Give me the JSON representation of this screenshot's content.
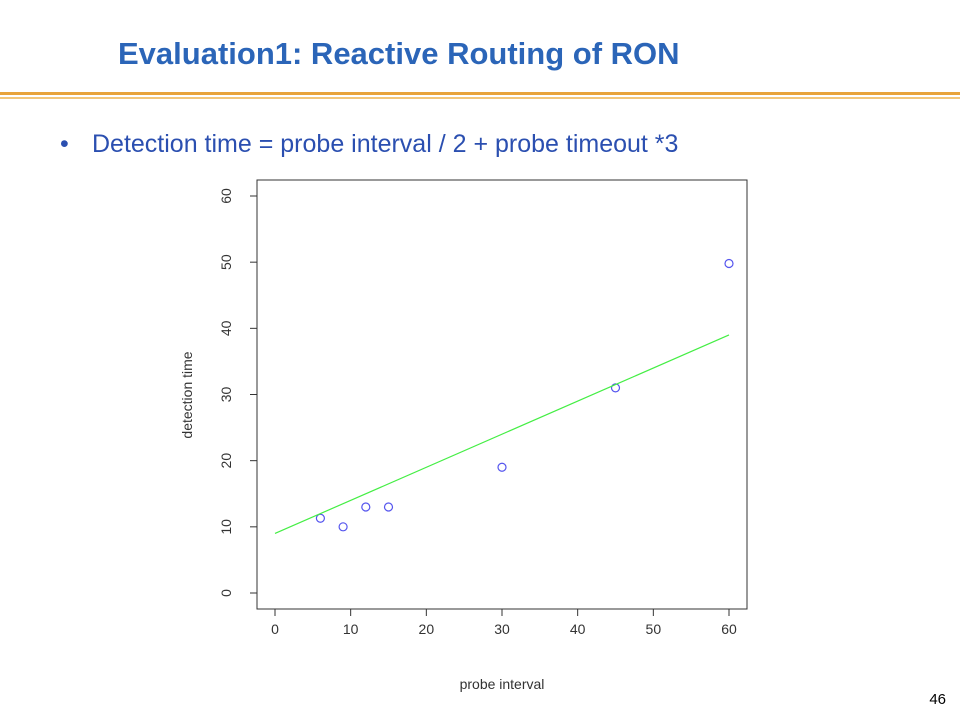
{
  "slide": {
    "title": "Evaluation1: Reactive Routing of RON",
    "bullet_symbol": "•",
    "bullet_text": "Detection time = probe interval / 2 + probe timeout *3",
    "page_number": "46",
    "title_color": "#2b65b8",
    "rule_color": "#e8a33a"
  },
  "chart_data": {
    "type": "scatter",
    "title": "",
    "xlabel": "probe interval",
    "ylabel": "detection time",
    "xlim": [
      0,
      60
    ],
    "ylim": [
      0,
      60
    ],
    "xticks": [
      0,
      10,
      20,
      30,
      40,
      50,
      60
    ],
    "yticks": [
      0,
      10,
      20,
      30,
      40,
      50,
      60
    ],
    "grid": false,
    "series": [
      {
        "kind": "points",
        "marker": "open-circle",
        "color": "#5555ee",
        "x": [
          6,
          9,
          12,
          15,
          30,
          45,
          60
        ],
        "y": [
          11.3,
          10,
          13,
          13,
          19,
          31,
          49.8
        ]
      },
      {
        "kind": "line",
        "color": "#44ee44",
        "x": [
          0,
          60
        ],
        "y": [
          9,
          39
        ]
      }
    ]
  }
}
